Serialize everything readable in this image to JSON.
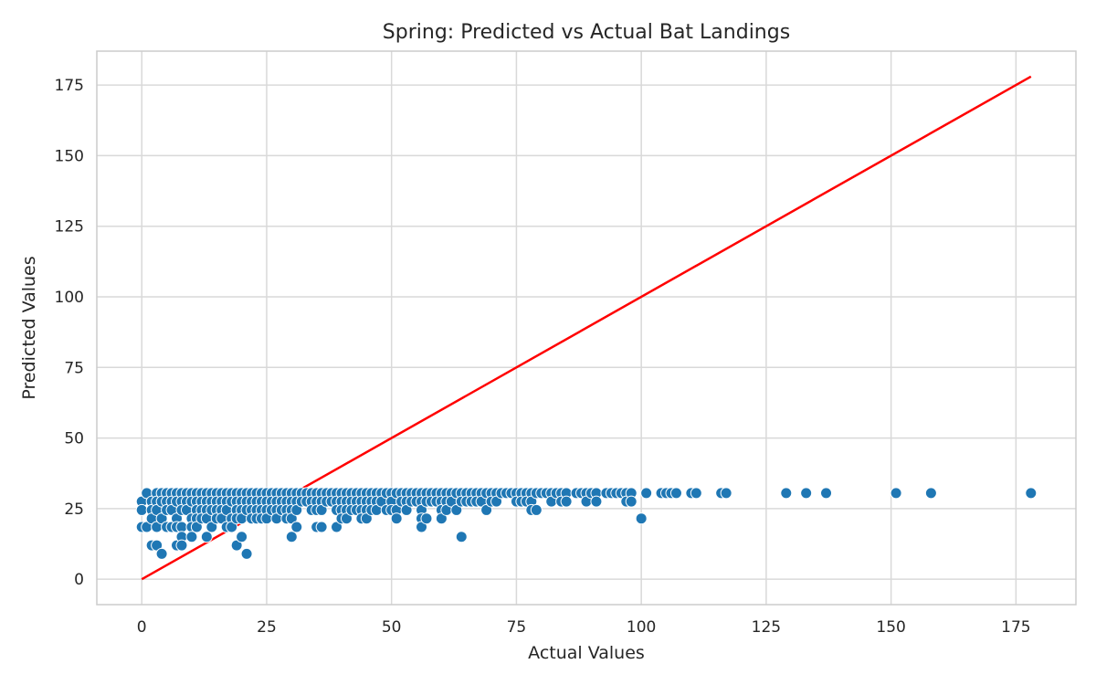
{
  "chart_data": {
    "type": "scatter",
    "title": "Spring: Predicted vs Actual Bat Landings",
    "xlabel": "Actual Values",
    "ylabel": "Predicted Values",
    "xlim": [
      -9,
      187
    ],
    "ylim": [
      -9,
      187
    ],
    "xticks": [
      0,
      25,
      50,
      75,
      100,
      125,
      150,
      175
    ],
    "yticks": [
      0,
      25,
      50,
      75,
      100,
      125,
      150,
      175
    ],
    "grid": true,
    "colors": {
      "points": "#1f77b4",
      "reference_line": "#ff0000"
    },
    "reference_line": {
      "x": [
        0,
        178
      ],
      "y": [
        0,
        178
      ]
    },
    "points": [
      [
        0,
        27.5
      ],
      [
        0,
        24.5
      ],
      [
        0,
        18.5
      ],
      [
        1,
        30.5
      ],
      [
        1,
        18.5
      ],
      [
        2,
        27.5
      ],
      [
        2,
        24.5
      ],
      [
        2,
        21.5
      ],
      [
        2,
        12
      ],
      [
        3,
        30.5
      ],
      [
        3,
        27.5
      ],
      [
        3,
        24.5
      ],
      [
        3,
        18.5
      ],
      [
        3,
        12
      ],
      [
        4,
        30.5
      ],
      [
        4,
        27.5
      ],
      [
        4,
        21.5
      ],
      [
        4,
        9
      ],
      [
        5,
        30.5
      ],
      [
        5,
        27.5
      ],
      [
        5,
        24.5
      ],
      [
        5,
        18.5
      ],
      [
        6,
        30.5
      ],
      [
        6,
        27.5
      ],
      [
        6,
        24.5
      ],
      [
        6,
        18.5
      ],
      [
        7,
        30.5
      ],
      [
        7,
        27.5
      ],
      [
        7,
        21.5
      ],
      [
        7,
        18.5
      ],
      [
        7,
        12
      ],
      [
        8,
        30.5
      ],
      [
        8,
        27.5
      ],
      [
        8,
        24.5
      ],
      [
        8,
        18.5
      ],
      [
        8,
        15
      ],
      [
        8,
        12
      ],
      [
        9,
        30.5
      ],
      [
        9,
        27.5
      ],
      [
        9,
        24.5
      ],
      [
        10,
        30.5
      ],
      [
        10,
        27.5
      ],
      [
        10,
        21.5
      ],
      [
        10,
        18.5
      ],
      [
        10,
        15
      ],
      [
        11,
        30.5
      ],
      [
        11,
        27.5
      ],
      [
        11,
        24.5
      ],
      [
        11,
        21.5
      ],
      [
        11,
        18.5
      ],
      [
        12,
        30.5
      ],
      [
        12,
        27.5
      ],
      [
        12,
        24.5
      ],
      [
        12,
        21.5
      ],
      [
        13,
        30.5
      ],
      [
        13,
        27.5
      ],
      [
        13,
        24.5
      ],
      [
        13,
        21.5
      ],
      [
        13,
        15
      ],
      [
        14,
        30.5
      ],
      [
        14,
        27.5
      ],
      [
        14,
        24.5
      ],
      [
        14,
        18.5
      ],
      [
        15,
        30.5
      ],
      [
        15,
        27.5
      ],
      [
        15,
        24.5
      ],
      [
        15,
        21.5
      ],
      [
        16,
        30.5
      ],
      [
        16,
        27.5
      ],
      [
        16,
        24.5
      ],
      [
        16,
        21.5
      ],
      [
        17,
        30.5
      ],
      [
        17,
        27.5
      ],
      [
        17,
        24.5
      ],
      [
        17,
        18.5
      ],
      [
        18,
        30.5
      ],
      [
        18,
        27.5
      ],
      [
        18,
        21.5
      ],
      [
        18,
        18.5
      ],
      [
        19,
        30.5
      ],
      [
        19,
        27.5
      ],
      [
        19,
        24.5
      ],
      [
        19,
        21.5
      ],
      [
        19,
        12
      ],
      [
        20,
        30.5
      ],
      [
        20,
        27.5
      ],
      [
        20,
        24.5
      ],
      [
        20,
        21.5
      ],
      [
        20,
        15
      ],
      [
        21,
        30.5
      ],
      [
        21,
        27.5
      ],
      [
        21,
        24.5
      ],
      [
        21,
        9
      ],
      [
        22,
        30.5
      ],
      [
        22,
        27.5
      ],
      [
        22,
        24.5
      ],
      [
        22,
        21.5
      ],
      [
        23,
        30.5
      ],
      [
        23,
        27.5
      ],
      [
        23,
        24.5
      ],
      [
        23,
        21.5
      ],
      [
        24,
        30.5
      ],
      [
        24,
        27.5
      ],
      [
        24,
        24.5
      ],
      [
        24,
        21.5
      ],
      [
        25,
        30.5
      ],
      [
        25,
        27.5
      ],
      [
        25,
        24.5
      ],
      [
        25,
        21.5
      ],
      [
        26,
        30.5
      ],
      [
        26,
        27.5
      ],
      [
        26,
        24.5
      ],
      [
        27,
        30.5
      ],
      [
        27,
        27.5
      ],
      [
        27,
        24.5
      ],
      [
        27,
        21.5
      ],
      [
        28,
        30.5
      ],
      [
        28,
        27.5
      ],
      [
        28,
        24.5
      ],
      [
        29,
        30.5
      ],
      [
        29,
        27.5
      ],
      [
        29,
        24.5
      ],
      [
        29,
        21.5
      ],
      [
        30,
        30.5
      ],
      [
        30,
        27.5
      ],
      [
        30,
        24.5
      ],
      [
        30,
        21.5
      ],
      [
        30,
        15
      ],
      [
        31,
        30.5
      ],
      [
        31,
        27.5
      ],
      [
        31,
        24.5
      ],
      [
        31,
        18.5
      ],
      [
        32,
        30.5
      ],
      [
        32,
        27.5
      ],
      [
        33,
        30.5
      ],
      [
        33,
        27.5
      ],
      [
        34,
        30.5
      ],
      [
        34,
        27.5
      ],
      [
        34,
        24.5
      ],
      [
        35,
        30.5
      ],
      [
        35,
        27.5
      ],
      [
        35,
        24.5
      ],
      [
        35,
        18.5
      ],
      [
        36,
        30.5
      ],
      [
        36,
        27.5
      ],
      [
        36,
        24.5
      ],
      [
        36,
        18.5
      ],
      [
        37,
        30.5
      ],
      [
        37,
        27.5
      ],
      [
        38,
        30.5
      ],
      [
        38,
        27.5
      ],
      [
        39,
        30.5
      ],
      [
        39,
        27.5
      ],
      [
        39,
        24.5
      ],
      [
        39,
        18.5
      ],
      [
        40,
        30.5
      ],
      [
        40,
        27.5
      ],
      [
        40,
        24.5
      ],
      [
        40,
        21.5
      ],
      [
        41,
        30.5
      ],
      [
        41,
        27.5
      ],
      [
        41,
        24.5
      ],
      [
        41,
        21.5
      ],
      [
        42,
        30.5
      ],
      [
        42,
        27.5
      ],
      [
        42,
        24.5
      ],
      [
        43,
        30.5
      ],
      [
        43,
        27.5
      ],
      [
        43,
        24.5
      ],
      [
        44,
        30.5
      ],
      [
        44,
        27.5
      ],
      [
        44,
        24.5
      ],
      [
        44,
        21.5
      ],
      [
        45,
        30.5
      ],
      [
        45,
        27.5
      ],
      [
        45,
        24.5
      ],
      [
        45,
        21.5
      ],
      [
        46,
        30.5
      ],
      [
        46,
        27.5
      ],
      [
        46,
        24.5
      ],
      [
        47,
        30.5
      ],
      [
        47,
        27.5
      ],
      [
        47,
        24.5
      ],
      [
        48,
        30.5
      ],
      [
        48,
        27.5
      ],
      [
        49,
        30.5
      ],
      [
        49,
        24.5
      ],
      [
        50,
        30.5
      ],
      [
        50,
        27.5
      ],
      [
        50,
        24.5
      ],
      [
        51,
        30.5
      ],
      [
        51,
        24.5
      ],
      [
        51,
        21.5
      ],
      [
        52,
        30.5
      ],
      [
        52,
        27.5
      ],
      [
        53,
        30.5
      ],
      [
        53,
        27.5
      ],
      [
        53,
        24.5
      ],
      [
        54,
        30.5
      ],
      [
        54,
        27.5
      ],
      [
        55,
        30.5
      ],
      [
        55,
        27.5
      ],
      [
        56,
        30.5
      ],
      [
        56,
        27.5
      ],
      [
        56,
        24.5
      ],
      [
        56,
        21.5
      ],
      [
        56,
        18.5
      ],
      [
        57,
        30.5
      ],
      [
        57,
        27.5
      ],
      [
        57,
        21.5
      ],
      [
        58,
        30.5
      ],
      [
        58,
        27.5
      ],
      [
        59,
        30.5
      ],
      [
        59,
        27.5
      ],
      [
        60,
        30.5
      ],
      [
        60,
        27.5
      ],
      [
        60,
        24.5
      ],
      [
        60,
        21.5
      ],
      [
        61,
        30.5
      ],
      [
        61,
        27.5
      ],
      [
        61,
        24.5
      ],
      [
        62,
        30.5
      ],
      [
        62,
        27.5
      ],
      [
        63,
        30.5
      ],
      [
        63,
        24.5
      ],
      [
        64,
        30.5
      ],
      [
        64,
        27.5
      ],
      [
        64,
        15
      ],
      [
        65,
        30.5
      ],
      [
        65,
        27.5
      ],
      [
        66,
        30.5
      ],
      [
        66,
        27.5
      ],
      [
        67,
        30.5
      ],
      [
        67,
        27.5
      ],
      [
        68,
        30.5
      ],
      [
        68,
        27.5
      ],
      [
        69,
        30.5
      ],
      [
        69,
        24.5
      ],
      [
        70,
        30.5
      ],
      [
        70,
        27.5
      ],
      [
        71,
        30.5
      ],
      [
        71,
        27.5
      ],
      [
        72,
        30.5
      ],
      [
        73,
        30.5
      ],
      [
        74,
        30.5
      ],
      [
        75,
        30.5
      ],
      [
        75,
        27.5
      ],
      [
        76,
        30.5
      ],
      [
        76,
        27.5
      ],
      [
        77,
        30.5
      ],
      [
        77,
        27.5
      ],
      [
        78,
        30.5
      ],
      [
        78,
        27.5
      ],
      [
        78,
        24.5
      ],
      [
        79,
        30.5
      ],
      [
        79,
        24.5
      ],
      [
        80,
        30.5
      ],
      [
        81,
        30.5
      ],
      [
        82,
        30.5
      ],
      [
        82,
        27.5
      ],
      [
        83,
        30.5
      ],
      [
        84,
        30.5
      ],
      [
        84,
        27.5
      ],
      [
        85,
        30.5
      ],
      [
        85,
        27.5
      ],
      [
        87,
        30.5
      ],
      [
        88,
        30.5
      ],
      [
        89,
        30.5
      ],
      [
        89,
        27.5
      ],
      [
        90,
        30.5
      ],
      [
        91,
        30.5
      ],
      [
        91,
        27.5
      ],
      [
        93,
        30.5
      ],
      [
        94,
        30.5
      ],
      [
        95,
        30.5
      ],
      [
        96,
        30.5
      ],
      [
        97,
        30.5
      ],
      [
        97,
        27.5
      ],
      [
        98,
        30.5
      ],
      [
        98,
        27.5
      ],
      [
        100,
        21.5
      ],
      [
        101,
        30.5
      ],
      [
        104,
        30.5
      ],
      [
        105,
        30.5
      ],
      [
        106,
        30.5
      ],
      [
        107,
        30.5
      ],
      [
        110,
        30.5
      ],
      [
        111,
        30.5
      ],
      [
        116,
        30.5
      ],
      [
        117,
        30.5
      ],
      [
        129,
        30.5
      ],
      [
        133,
        30.5
      ],
      [
        137,
        30.5
      ],
      [
        151,
        30.5
      ],
      [
        158,
        30.5
      ],
      [
        178,
        30.5
      ]
    ]
  }
}
